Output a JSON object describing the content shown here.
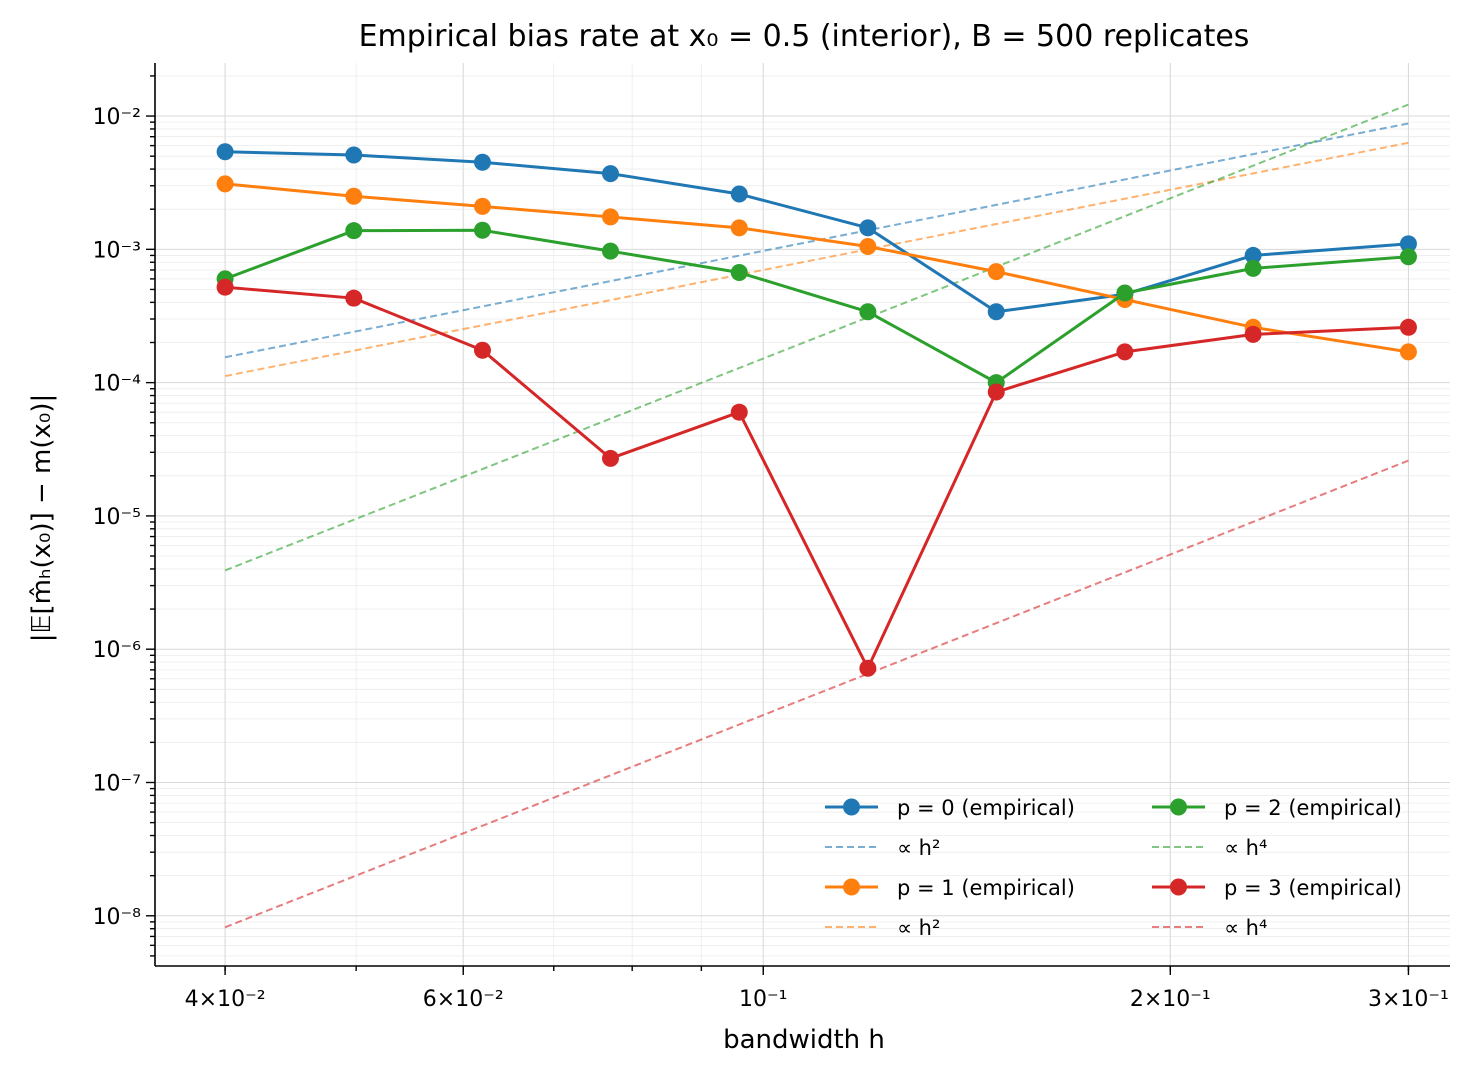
{
  "chart_data": {
    "type": "line",
    "title": "Empirical bias rate at x₀ = 0.5 (interior),  B = 500 replicates",
    "xlabel": "bandwidth h",
    "ylabel": "|𝔼[m̂ₕ(x₀)] − m(x₀)|",
    "xscale": "log",
    "yscale": "log",
    "xlim": [
      0.0355,
      0.322
    ],
    "ylim": [
      4.2e-09,
      0.025
    ],
    "grid": true,
    "legend_position": "lower-right",
    "legend_columns": 2,
    "x_ticks": [
      {
        "value": 0.04,
        "label": "4×10⁻²"
      },
      {
        "value": 0.06,
        "label": "6×10⁻²"
      },
      {
        "value": 0.1,
        "label": "10⁻¹"
      },
      {
        "value": 0.2,
        "label": "2×10⁻¹"
      },
      {
        "value": 0.3,
        "label": "3×10⁻¹"
      }
    ],
    "y_ticks": [
      {
        "value": 1e-08,
        "label": "10⁻⁸"
      },
      {
        "value": 1e-07,
        "label": "10⁻⁷"
      },
      {
        "value": 1e-06,
        "label": "10⁻⁶"
      },
      {
        "value": 1e-05,
        "label": "10⁻⁵"
      },
      {
        "value": 0.0001,
        "label": "10⁻⁴"
      },
      {
        "value": 0.001,
        "label": "10⁻³"
      },
      {
        "value": 0.01,
        "label": "10⁻²"
      }
    ],
    "x": [
      0.04,
      0.0498,
      0.062,
      0.0771,
      0.096,
      0.1195,
      0.1487,
      0.1851,
      0.2303,
      0.3
    ],
    "series": [
      {
        "name": "p = 0 (empirical)",
        "color": "#1f77b4",
        "style": "solid-marker",
        "values": [
          0.0054,
          0.0051,
          0.0045,
          0.0037,
          0.0026,
          0.00145,
          0.00034,
          0.00046,
          0.0009,
          0.0011
        ]
      },
      {
        "name": "p = 1 (empirical)",
        "color": "#ff7f0e",
        "style": "solid-marker",
        "values": [
          0.0031,
          0.0025,
          0.0021,
          0.00175,
          0.00145,
          0.00105,
          0.00068,
          0.00042,
          0.00026,
          0.00017
        ]
      },
      {
        "name": "p = 2 (empirical)",
        "color": "#2ca02c",
        "style": "solid-marker",
        "values": [
          0.0006,
          0.00138,
          0.00139,
          0.00097,
          0.00067,
          0.00034,
          0.0001,
          0.00047,
          0.00072,
          0.00088
        ]
      },
      {
        "name": "p = 3 (empirical)",
        "color": "#d62728",
        "style": "solid-marker",
        "values": [
          0.00052,
          0.00043,
          0.000175,
          2.7e-05,
          6e-05,
          7.2e-07,
          8.5e-05,
          0.00017,
          0.00023,
          0.00026
        ]
      }
    ],
    "reference_lines": [
      {
        "name": "∝ h²",
        "color": "#1f77b4",
        "x": [
          0.04,
          0.3
        ],
        "values": [
          0.000155,
          0.0088
        ]
      },
      {
        "name": "∝ h²",
        "color": "#ff7f0e",
        "x": [
          0.04,
          0.3
        ],
        "values": [
          0.000112,
          0.0063
        ]
      },
      {
        "name": "∝ h⁴",
        "color": "#2ca02c",
        "x": [
          0.04,
          0.3
        ],
        "values": [
          3.9e-06,
          0.0122
        ]
      },
      {
        "name": "∝ h⁴",
        "color": "#d62728",
        "x": [
          0.04,
          0.3
        ],
        "values": [
          8.2e-09,
          2.6e-05
        ]
      }
    ],
    "legend_order": [
      {
        "kind": "series",
        "index": 0
      },
      {
        "kind": "reference",
        "index": 0
      },
      {
        "kind": "series",
        "index": 1
      },
      {
        "kind": "reference",
        "index": 1
      },
      {
        "kind": "series",
        "index": 2
      },
      {
        "kind": "reference",
        "index": 2
      },
      {
        "kind": "series",
        "index": 3
      },
      {
        "kind": "reference",
        "index": 3
      }
    ]
  }
}
